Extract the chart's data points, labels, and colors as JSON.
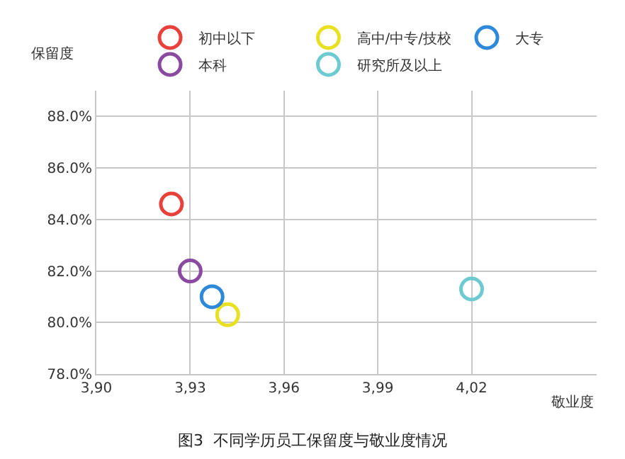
{
  "chart_data": {
    "type": "scatter",
    "title": "图3  不同学历员工保留度与敬业度情况",
    "xlabel": "敬业度",
    "ylabel": "保留度",
    "series": [
      {
        "name": "初中以下",
        "color": "#e8403a",
        "x": [
          3.924
        ],
        "values": [
          84.6
        ]
      },
      {
        "name": "高中/中专/技校",
        "color": "#e8e020",
        "x": [
          3.942
        ],
        "values": [
          80.3
        ]
      },
      {
        "name": "大专",
        "color": "#2e8ad8",
        "x": [
          3.937
        ],
        "values": [
          81.0
        ]
      },
      {
        "name": "本科",
        "color": "#8a4aa0",
        "x": [
          3.93
        ],
        "values": [
          82.0
        ]
      },
      {
        "name": "研究所及以上",
        "color": "#6ccad0",
        "x": [
          4.02
        ],
        "values": [
          81.3
        ]
      }
    ],
    "xlim": [
      3.9,
      4.06
    ],
    "xticks": [
      {
        "value": 3.9,
        "label": "3,90"
      },
      {
        "value": 3.93,
        "label": "3,93"
      },
      {
        "value": 3.96,
        "label": "3,96"
      },
      {
        "value": 3.99,
        "label": "3,99"
      },
      {
        "value": 4.02,
        "label": "4,02"
      }
    ],
    "ylim": [
      78,
      89
    ],
    "yticks": [
      {
        "value": 78,
        "label": "78.0%"
      },
      {
        "value": 80,
        "label": "80.0%"
      },
      {
        "value": 82,
        "label": "82.0%"
      },
      {
        "value": 84,
        "label": "84.0%"
      },
      {
        "value": 86,
        "label": "86.0%"
      },
      {
        "value": 88,
        "label": "88.0%"
      }
    ],
    "grid": true,
    "legend": "top",
    "marker": "circle"
  }
}
